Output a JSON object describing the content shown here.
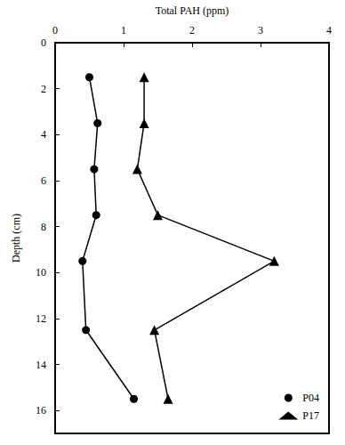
{
  "chart_data": {
    "type": "line",
    "xlabel": "Total PAH (ppm)",
    "ylabel": "Depth (cm)",
    "xlim": [
      0,
      4
    ],
    "xticks": [
      0,
      1,
      2,
      3,
      4
    ],
    "ylim": [
      0,
      17
    ],
    "yticks": [
      0,
      2,
      4,
      6,
      8,
      10,
      12,
      14,
      16
    ],
    "grid": false,
    "legend": "lower right",
    "series": [
      {
        "name": "P04",
        "color": "#000000",
        "marker": "circle",
        "x": [
          0.5,
          0.62,
          0.57,
          0.6,
          0.4,
          0.45,
          1.15
        ],
        "y": [
          1.5,
          3.5,
          5.5,
          7.5,
          9.5,
          12.5,
          15.5
        ]
      },
      {
        "name": "P17",
        "color": "#000000",
        "marker": "triangle",
        "x": [
          1.3,
          1.3,
          1.2,
          1.5,
          3.2,
          1.45,
          1.65
        ],
        "y": [
          1.5,
          3.5,
          5.5,
          7.5,
          9.5,
          12.5,
          15.5
        ]
      }
    ]
  }
}
